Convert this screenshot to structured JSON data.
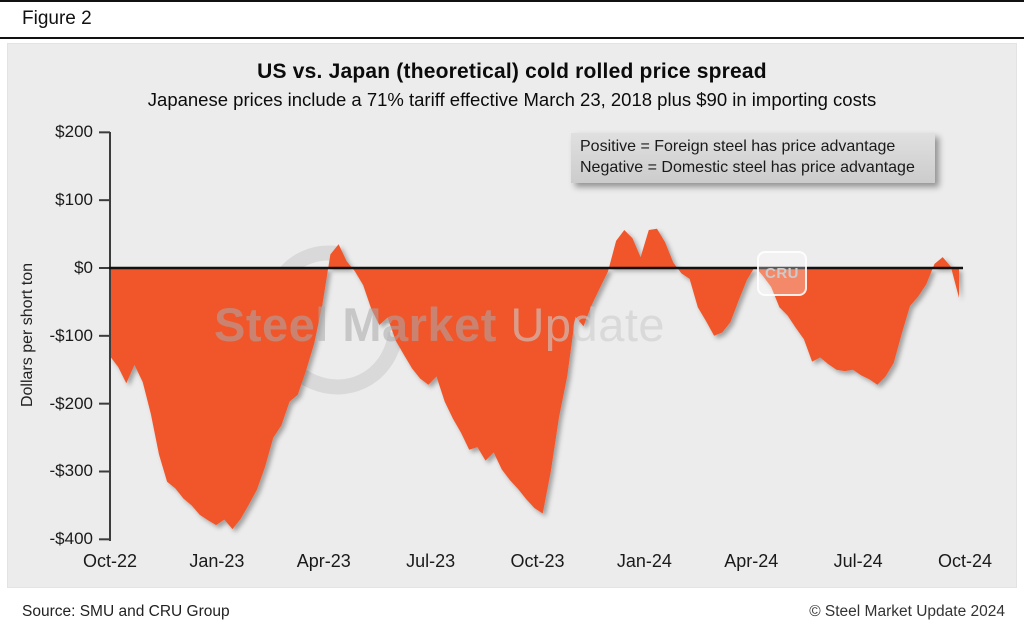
{
  "figure": {
    "label": "Figure 2"
  },
  "header": {
    "title": "US vs. Japan (theoretical) cold rolled price spread",
    "subtitle": "Japanese prices include a 71% tariff effective March 23, 2018 plus $90 in importing costs"
  },
  "legend_note": {
    "line1": "Positive = Foreign steel has price advantage",
    "line2": "Negative = Domestic steel has price advantage"
  },
  "y_axis": {
    "title": "Dollars per short ton",
    "ticks": [
      {
        "label": "$200",
        "value": 200
      },
      {
        "label": "$100",
        "value": 100
      },
      {
        "label": "$0",
        "value": 0
      },
      {
        "label": "-$100",
        "value": -100
      },
      {
        "label": "-$200",
        "value": -200
      },
      {
        "label": "-$300",
        "value": -300
      },
      {
        "label": "-$400",
        "value": -400
      }
    ]
  },
  "x_axis": {
    "ticks": [
      "Oct-22",
      "Jan-23",
      "Apr-23",
      "Jul-23",
      "Oct-23",
      "Jan-24",
      "Apr-24",
      "Jul-24",
      "Oct-24"
    ]
  },
  "watermark": {
    "bold": "Steel Market ",
    "light": "Update",
    "cru": "CRU"
  },
  "footer": {
    "source": "Source: SMU and CRU Group",
    "copyright": "© Steel Market Update 2024"
  },
  "colors": {
    "area": "#F0562B",
    "zero_line": "#111111",
    "axis": "#3c3c3c",
    "panel_bg": "#ececec",
    "legend_bg": "#d6d6d6"
  },
  "chart_data": {
    "type": "area",
    "title": "US vs. Japan (theoretical) cold rolled price spread",
    "subtitle": "Japanese prices include a 71% tariff effective March 23, 2018 plus $90 in importing costs",
    "ylabel": "Dollars per short ton",
    "ylim": [
      -400,
      200
    ],
    "y_tick_step": 100,
    "x_tick_labels": [
      "Oct-22",
      "Jan-23",
      "Apr-23",
      "Jul-23",
      "Oct-23",
      "Jan-24",
      "Apr-24",
      "Jul-24",
      "Oct-24"
    ],
    "frequency": "weekly",
    "x_range": [
      "Oct-2022",
      "Oct-2024"
    ],
    "series_name": "US minus Japan (theoretical) cold rolled spread, dollars per short ton",
    "annotations": [
      "Positive = Foreign steel has price advantage",
      "Negative = Domestic steel has price advantage"
    ],
    "values": [
      -130,
      -146,
      -170,
      -143,
      -168,
      -215,
      -275,
      -315,
      -325,
      -340,
      -350,
      -364,
      -372,
      -379,
      -371,
      -385,
      -370,
      -349,
      -327,
      -293,
      -250,
      -232,
      -197,
      -187,
      -152,
      -112,
      -55,
      20,
      35,
      10,
      -5,
      -25,
      -60,
      -84,
      -73,
      -107,
      -128,
      -148,
      -163,
      -172,
      -160,
      -197,
      -222,
      -243,
      -268,
      -264,
      -284,
      -272,
      -297,
      -313,
      -326,
      -341,
      -354,
      -362,
      -300,
      -220,
      -160,
      -72,
      -86,
      -55,
      -30,
      -5,
      40,
      56,
      44,
      16,
      56,
      58,
      38,
      8,
      -8,
      -16,
      -58,
      -78,
      -100,
      -95,
      -80,
      -48,
      -18,
      2,
      -12,
      -28,
      -58,
      -70,
      -88,
      -105,
      -138,
      -132,
      -142,
      -150,
      -152,
      -150,
      -158,
      -164,
      -172,
      -160,
      -140,
      -96,
      -56,
      -42,
      -24,
      6,
      16,
      2,
      -44
    ]
  }
}
